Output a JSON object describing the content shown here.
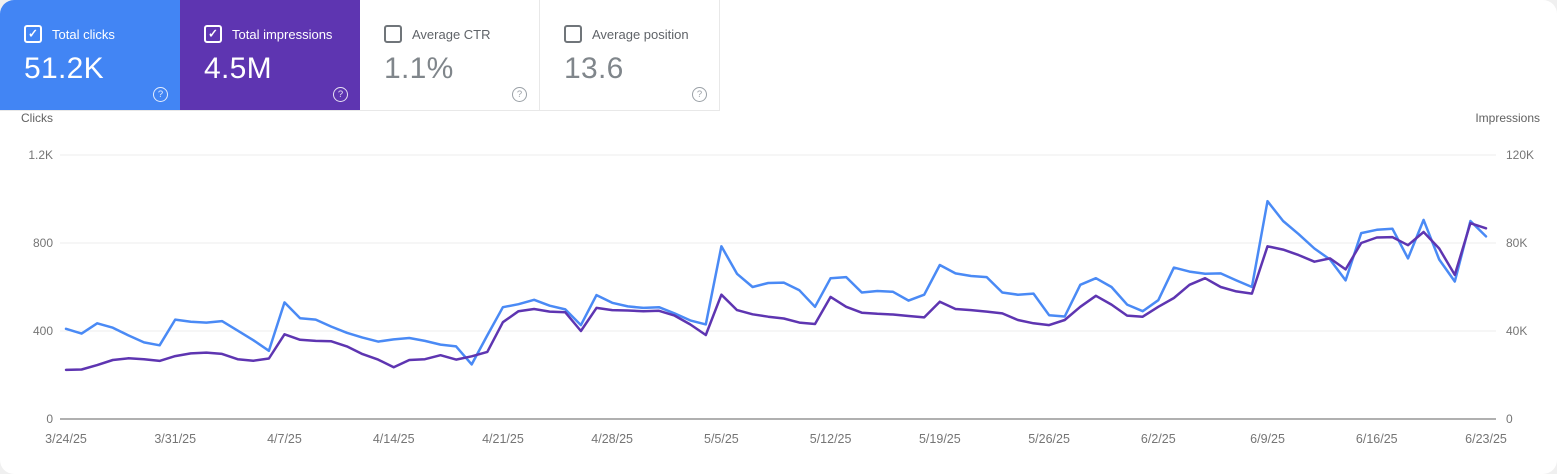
{
  "cards": [
    {
      "label": "Total clicks",
      "value": "51.2K",
      "checked": true,
      "bg": "#4285f4"
    },
    {
      "label": "Total impressions",
      "value": "4.5M",
      "checked": true,
      "bg": "#5e35b1"
    },
    {
      "label": "Average CTR",
      "value": "1.1%",
      "checked": false,
      "bg": "#ffffff"
    },
    {
      "label": "Average position",
      "value": "13.6",
      "checked": false,
      "bg": "#ffffff"
    }
  ],
  "help_glyph": "?",
  "chart": {
    "left_axis_title": "Clicks",
    "right_axis_title": "Impressions"
  },
  "chart_data": {
    "type": "line",
    "x_start": "3/24/25",
    "x_end": "6/23/25",
    "points": 92,
    "x_tick_labels": [
      "3/24/25",
      "3/31/25",
      "4/7/25",
      "4/14/25",
      "4/21/25",
      "4/28/25",
      "5/5/25",
      "5/12/25",
      "5/19/25",
      "5/26/25",
      "6/2/25",
      "6/9/25",
      "6/16/25",
      "6/23/25"
    ],
    "left_ticks": [
      {
        "label": "0",
        "value": 0
      },
      {
        "label": "400",
        "value": 400
      },
      {
        "label": "800",
        "value": 800
      },
      {
        "label": "1.2K",
        "value": 1200
      }
    ],
    "right_ticks": [
      {
        "label": "0",
        "value": 0
      },
      {
        "label": "40K",
        "value": 40000
      },
      {
        "label": "80K",
        "value": 80000
      },
      {
        "label": "120K",
        "value": 120000
      }
    ],
    "left_ylim": [
      0,
      1200
    ],
    "right_ylim": [
      0,
      120000
    ],
    "grid": "horizontal",
    "legend_position": "none",
    "series": [
      {
        "name": "Total clicks",
        "axis": "left",
        "color": "#4a8af5",
        "values": [
          410,
          388,
          435,
          415,
          380,
          348,
          335,
          452,
          442,
          438,
          445,
          402,
          358,
          310,
          530,
          458,
          452,
          420,
          392,
          370,
          352,
          362,
          368,
          355,
          338,
          330,
          248,
          380,
          508,
          522,
          542,
          515,
          498,
          427,
          563,
          528,
          512,
          505,
          508,
          480,
          448,
          430,
          785,
          660,
          600,
          618,
          620,
          585,
          510,
          640,
          645,
          575,
          582,
          578,
          538,
          565,
          700,
          662,
          650,
          645,
          575,
          565,
          570,
          472,
          466,
          610,
          640,
          600,
          520,
          490,
          540,
          688,
          670,
          660,
          662,
          630,
          600,
          990,
          900,
          840,
          775,
          725,
          630,
          845,
          860,
          865,
          730,
          905,
          725,
          625,
          900,
          830
        ]
      },
      {
        "name": "Total impressions",
        "axis": "right",
        "color": "#5e35b1",
        "values": [
          22300,
          22500,
          24500,
          26800,
          27600,
          27200,
          26400,
          28600,
          29800,
          30200,
          29600,
          27200,
          26500,
          27500,
          38500,
          36000,
          35500,
          35300,
          33000,
          29500,
          27000,
          23500,
          26800,
          27200,
          29000,
          27000,
          28500,
          30500,
          44000,
          49000,
          50000,
          48800,
          48500,
          40000,
          50500,
          49500,
          49300,
          49000,
          49200,
          47000,
          43000,
          38200,
          56500,
          49500,
          47600,
          46500,
          45700,
          43800,
          43200,
          55500,
          51000,
          48300,
          47800,
          47500,
          46800,
          46200,
          53300,
          50000,
          49500,
          48800,
          48000,
          45000,
          43500,
          42700,
          45000,
          51000,
          56000,
          52000,
          47000,
          46500,
          51000,
          55000,
          61000,
          64000,
          60000,
          58000,
          57000,
          78500,
          77000,
          74500,
          71500,
          73000,
          68000,
          80000,
          82500,
          82700,
          79000,
          85000,
          77500,
          65500,
          89000,
          86700
        ]
      }
    ]
  }
}
